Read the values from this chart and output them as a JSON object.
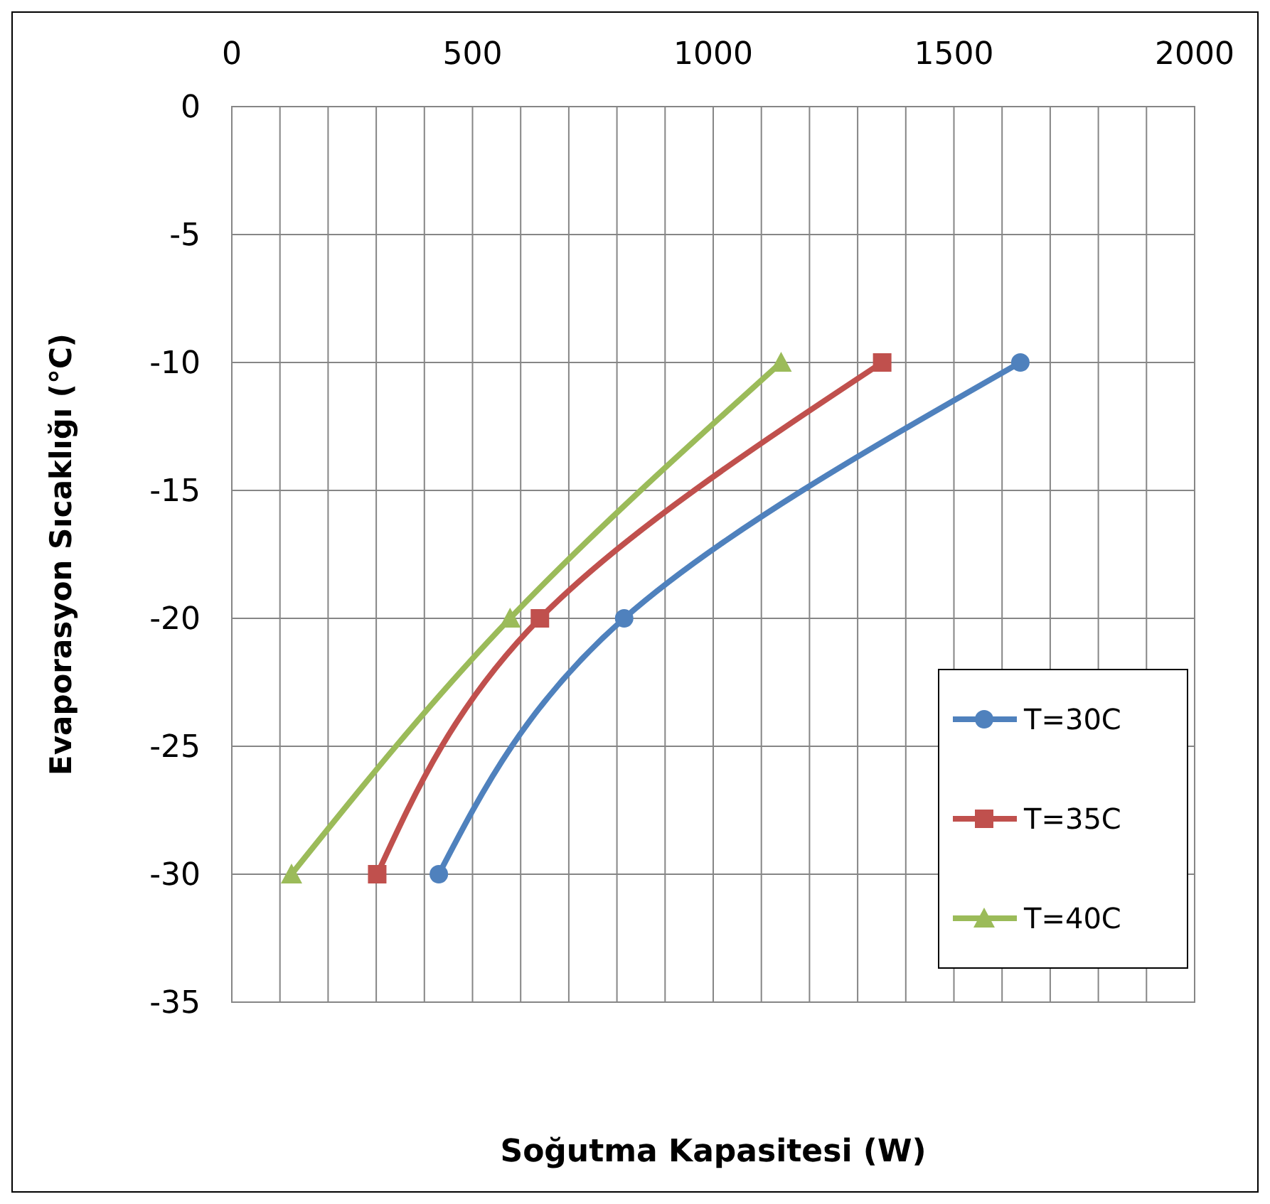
{
  "chart_data": {
    "type": "line",
    "xlabel": "Soğutma Kapasitesi (W)",
    "ylabel": "Evaporasyon Sıcaklığı (°C)",
    "xlim": [
      0,
      2000
    ],
    "xticks": [
      0,
      {
        "value": 100,
        "label": null
      },
      {
        "value": 200,
        "label": null
      },
      {
        "value": 300,
        "label": null
      },
      {
        "value": 400,
        "label": null
      },
      500,
      {
        "value": 600,
        "label": null
      },
      {
        "value": 700,
        "label": null
      },
      {
        "value": 800,
        "label": null
      },
      {
        "value": 900,
        "label": null
      },
      1000,
      {
        "value": 1100,
        "label": null
      },
      {
        "value": 1200,
        "label": null
      },
      {
        "value": 1300,
        "label": null
      },
      {
        "value": 1400,
        "label": null
      },
      1500,
      {
        "value": 1600,
        "label": null
      },
      {
        "value": 1700,
        "label": null
      },
      {
        "value": 1800,
        "label": null
      },
      {
        "value": 1900,
        "label": null
      },
      2000
    ],
    "ylim": [
      -35,
      0
    ],
    "yticks": [
      0,
      -5,
      -10,
      -15,
      -20,
      -25,
      -30,
      -35
    ],
    "grid": true,
    "legend": "right",
    "series": [
      {
        "name": "T=30C",
        "color": "#4f81bd",
        "marker": "circle",
        "x": [
          430,
          815,
          1638
        ],
        "values": [
          -30,
          -20,
          -10
        ]
      },
      {
        "name": "T=35C",
        "color": "#c0504d",
        "marker": "square",
        "x": [
          302,
          640,
          1351
        ],
        "values": [
          -30,
          -20,
          -10
        ]
      },
      {
        "name": "T=40C",
        "color": "#9bbb59",
        "marker": "triangle",
        "x": [
          124,
          578,
          1141
        ],
        "values": [
          -30,
          -20,
          -10
        ]
      }
    ]
  }
}
